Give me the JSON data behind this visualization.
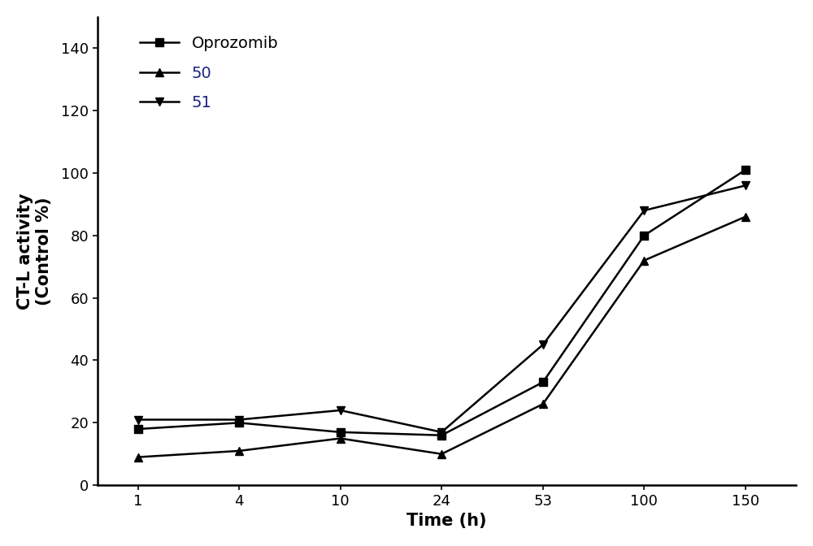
{
  "x_labels": [
    "1",
    "4",
    "10",
    "24",
    "53",
    "100",
    "150"
  ],
  "x_positions": [
    0,
    1,
    2,
    3,
    4,
    5,
    6
  ],
  "series": [
    {
      "label": "Oprozomib",
      "values": [
        18,
        20,
        17,
        16,
        33,
        80,
        101
      ],
      "marker": "s",
      "color": "#000000",
      "label_color": "#000000",
      "linewidth": 1.8,
      "markersize": 7
    },
    {
      "label": "50",
      "values": [
        9,
        11,
        15,
        10,
        26,
        72,
        86
      ],
      "marker": "^",
      "color": "#000000",
      "label_color": "#1a237e",
      "linewidth": 1.8,
      "markersize": 7
    },
    {
      "label": "51",
      "values": [
        21,
        21,
        24,
        17,
        45,
        88,
        96
      ],
      "marker": "v",
      "color": "#000000",
      "label_color": "#1a237e",
      "linewidth": 1.8,
      "markersize": 7
    }
  ],
  "xlabel": "Time (h)",
  "ylabel": "CT-L activity\n(Control %)",
  "ylim": [
    0,
    150
  ],
  "yticks": [
    0,
    20,
    40,
    60,
    80,
    100,
    120,
    140
  ],
  "background_color": "#ffffff",
  "spine_color": "#000000",
  "label_fontsize": 15,
  "tick_fontsize": 13,
  "legend_fontsize": 14
}
